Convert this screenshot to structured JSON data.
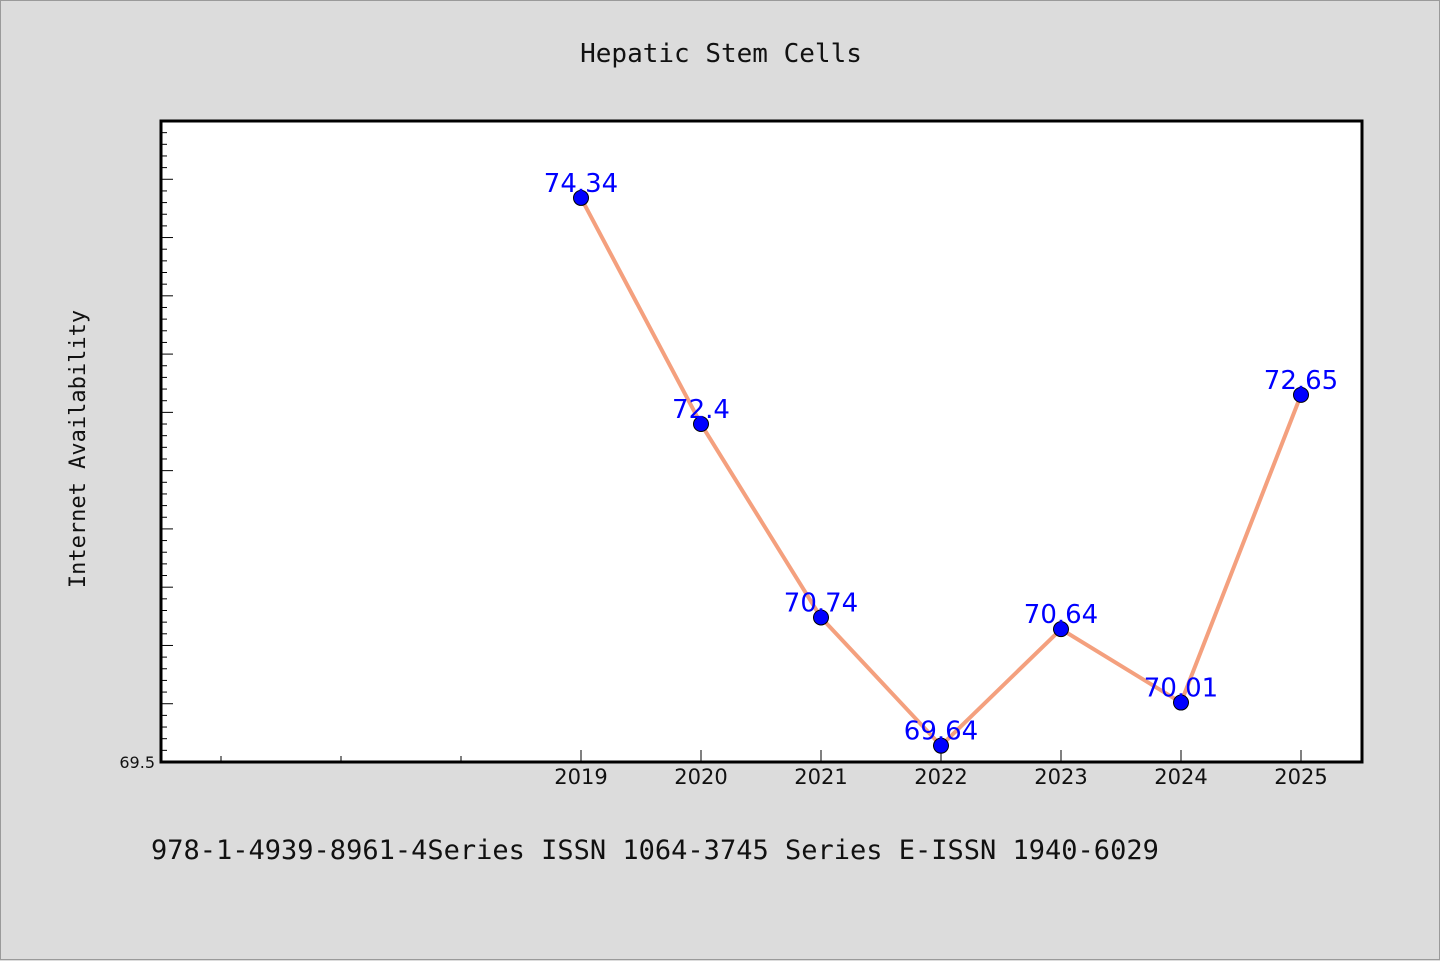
{
  "chart_data": {
    "type": "line",
    "title": "Hepatic Stem Cells",
    "xlabel": "",
    "ylabel": "Internet Availability",
    "categories": [
      "2019",
      "2020",
      "2021",
      "2022",
      "2023",
      "2024",
      "2025"
    ],
    "series": [
      {
        "values": [
          74.34,
          72.4,
          70.74,
          69.64,
          70.64,
          70.01,
          72.65
        ],
        "labels": [
          "74.34",
          "72.4",
          "70.74",
          "69.64",
          "70.64",
          "70.01",
          "72.65"
        ],
        "line_color": "#f4a07e",
        "marker_color": "#0000ff"
      }
    ],
    "ylim": [
      69.5,
      75.0
    ],
    "y_tick_labels": [
      "69.5"
    ],
    "grid": false,
    "legend": "none"
  },
  "footer": {
    "text": "978-1-4939-8961-4Series ISSN 1064-3745 Series E-ISSN 1940-6029"
  },
  "colors": {
    "background": "#dcdcdc",
    "plot_background": "#ffffff",
    "data_label": "#0000ff"
  }
}
